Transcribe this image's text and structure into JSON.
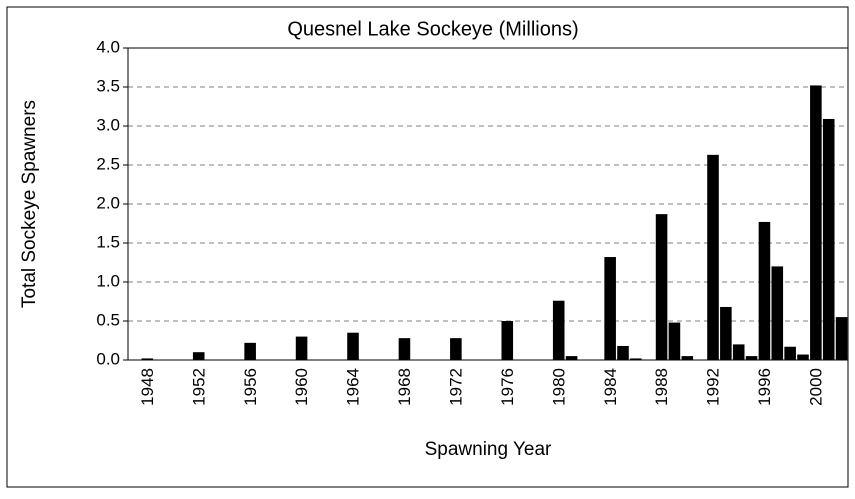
{
  "chart_data": {
    "type": "bar",
    "title": "Quesnel Lake Sockeye (Millions)",
    "x_label": "Spawning Year",
    "y_label": "Total Sockeye Spawners",
    "categories": [
      "1948",
      null,
      null,
      null,
      "1952",
      null,
      null,
      null,
      "1956",
      null,
      null,
      null,
      "1960",
      null,
      null,
      null,
      "1964",
      null,
      null,
      null,
      "1968",
      null,
      null,
      null,
      "1972",
      null,
      null,
      null,
      "1976",
      null,
      null,
      null,
      "1980",
      null,
      null,
      null,
      "1984",
      null,
      null,
      null,
      "1988",
      null,
      null,
      null,
      "1992",
      null,
      null,
      null,
      "1996",
      null,
      null,
      null,
      "2000",
      null,
      null,
      null
    ],
    "values": [
      0,
      0.02,
      0,
      0,
      0,
      0.1,
      0,
      0,
      0,
      0.22,
      0,
      0,
      0,
      0.3,
      0,
      0,
      0,
      0.35,
      0,
      0,
      0,
      0.28,
      0,
      0,
      0,
      0.28,
      0,
      0,
      0,
      0.5,
      0,
      0,
      0,
      0.76,
      0.05,
      0,
      0,
      1.32,
      0.18,
      0.02,
      0,
      1.87,
      0.48,
      0.05,
      0,
      2.63,
      0.68,
      0.2,
      0.05,
      1.77,
      1.2,
      0.17,
      0.07,
      3.52,
      3.09,
      0.55
    ],
    "color": "#000000",
    "ylim": [
      0,
      4
    ],
    "yticks": [
      {
        "value": 0,
        "label": "0.0"
      },
      0.5,
      {
        "value": 1,
        "label": "1.0"
      },
      1.5,
      {
        "value": 2,
        "label": "2.0"
      },
      2.5,
      {
        "value": 3,
        "label": "3.0"
      },
      3.5,
      {
        "value": 4,
        "label": "4.0"
      }
    ],
    "grid": true
  }
}
